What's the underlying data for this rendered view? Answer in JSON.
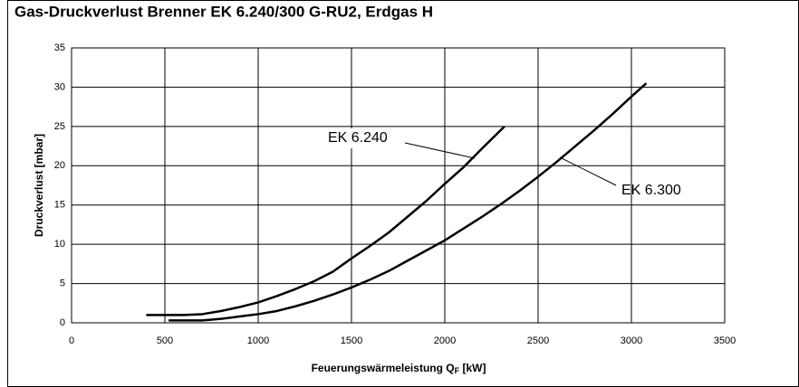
{
  "chart_data": {
    "type": "line",
    "title": "Gas-Druckverlust Brenner EK 6.240/300 G-RU2, Erdgas H",
    "ylabel": "Druckverlust [mbar]",
    "xlabel": [
      "Feuerungswärmeleistung Q",
      "F",
      " [kW]"
    ],
    "xlim": [
      0,
      3500
    ],
    "xticks": [
      0,
      500,
      1000,
      1500,
      2000,
      2500,
      3000,
      3500
    ],
    "ylim": [
      0,
      35
    ],
    "yticks": [
      0,
      5,
      10,
      15,
      20,
      25,
      30,
      35
    ],
    "grid": true,
    "series": [
      {
        "name": "EK 6.240",
        "color": "#000000",
        "x": [
          400,
          600,
          700,
          800,
          900,
          1000,
          1100,
          1200,
          1300,
          1400,
          1500,
          1600,
          1700,
          1800,
          1900,
          2000,
          2100,
          2200,
          2320
        ],
        "values": [
          1,
          1,
          1.1,
          1.5,
          2,
          2.6,
          3.4,
          4.3,
          5.3,
          6.5,
          8.2,
          9.8,
          11.5,
          13.5,
          15.5,
          17.7,
          19.8,
          22.2,
          25
        ]
      },
      {
        "name": "EK 6.300",
        "color": "#000000",
        "x": [
          520,
          700,
          800,
          900,
          1000,
          1100,
          1200,
          1300,
          1400,
          1500,
          1600,
          1700,
          1800,
          1900,
          2000,
          2100,
          2200,
          2300,
          2400,
          2500,
          2600,
          2700,
          2800,
          2900,
          3000,
          3080
        ],
        "values": [
          0.3,
          0.3,
          0.5,
          0.8,
          1.1,
          1.5,
          2.1,
          2.8,
          3.6,
          4.5,
          5.5,
          6.6,
          7.9,
          9.2,
          10.5,
          12,
          13.5,
          15.1,
          16.8,
          18.6,
          20.5,
          22.5,
          24.5,
          26.6,
          28.8,
          30.5
        ]
      }
    ]
  }
}
